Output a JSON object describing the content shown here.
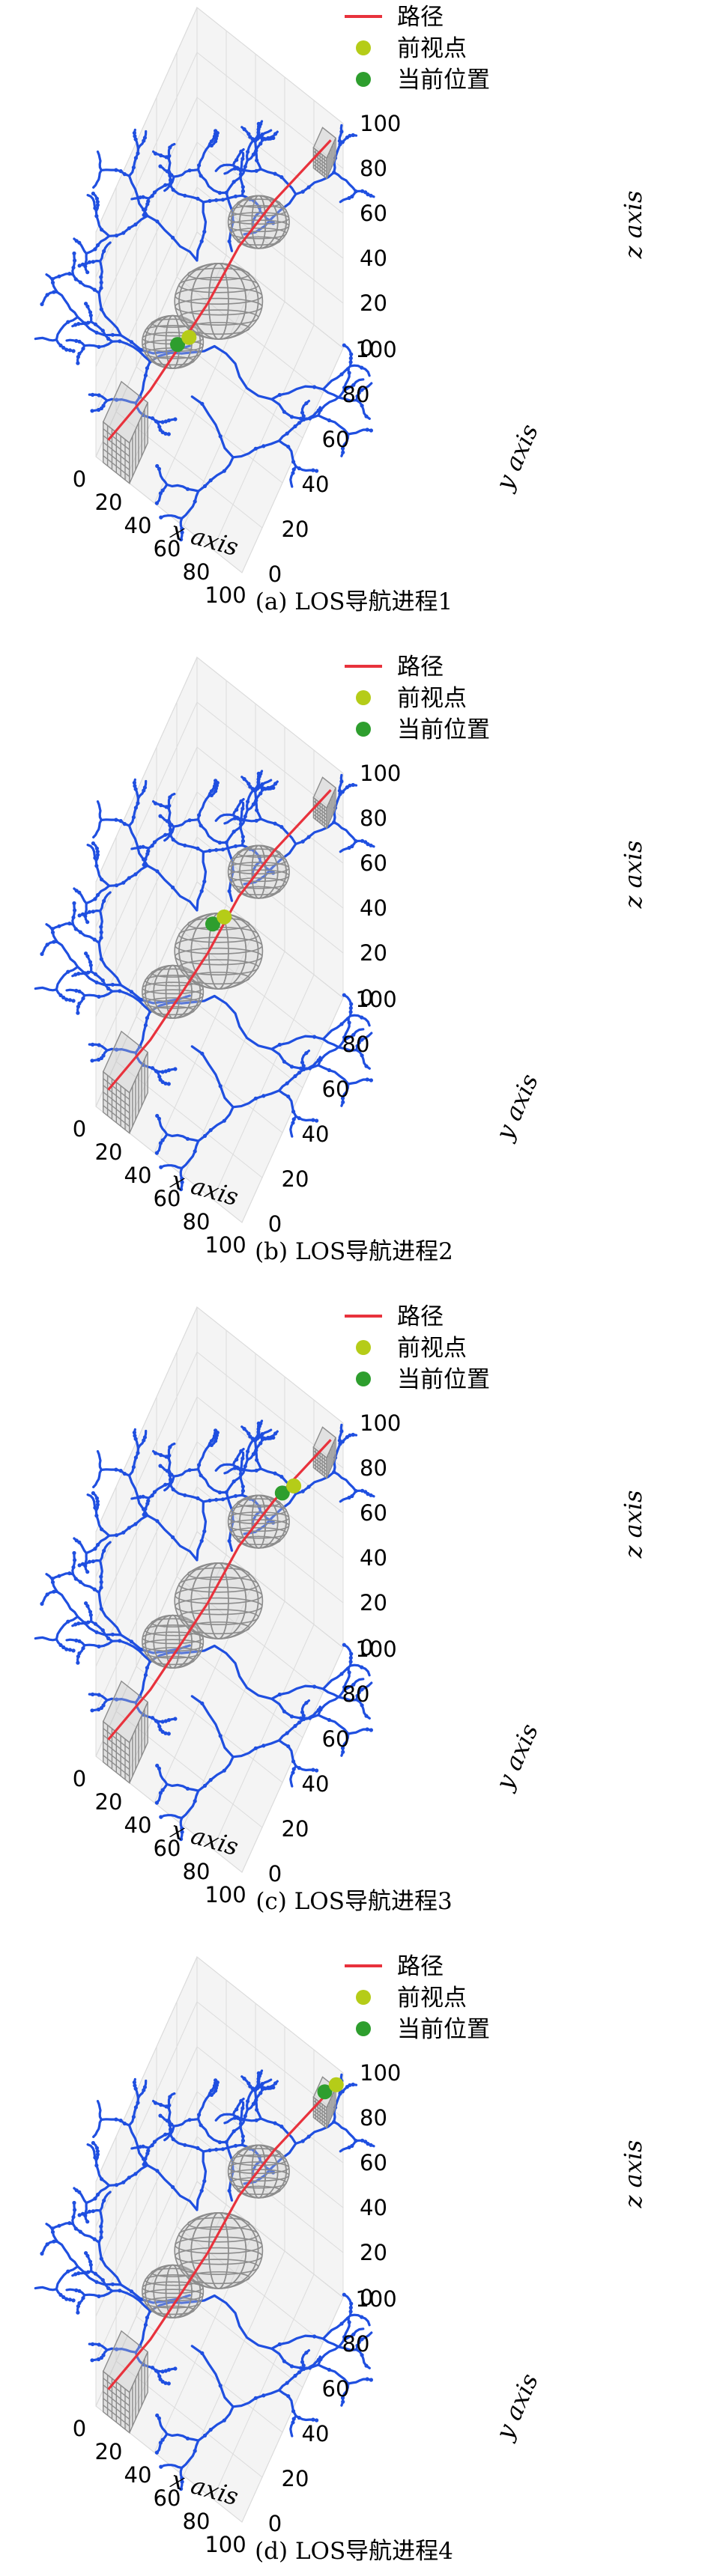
{
  "legend": {
    "path": "路径",
    "lookahead": "前视点",
    "current": "当前位置"
  },
  "colors": {
    "path": "#e8323c",
    "lookahead": "#b5cc18",
    "current": "#2e9e2e",
    "tree": "#1f4fe0",
    "obstacle": "#8c8c8c"
  },
  "axes": {
    "xlabel": "x axis",
    "ylabel": "y axis",
    "zlabel": "z axis",
    "xticks": [
      "0",
      "20",
      "40",
      "60",
      "80",
      "100"
    ],
    "yticks": [
      "0",
      "20",
      "40",
      "60",
      "80",
      "100"
    ],
    "zticks": [
      "0",
      "20",
      "40",
      "60",
      "80",
      "100"
    ]
  },
  "chart_data": [
    {
      "type": "line",
      "caption": "(a) LOS导航进程1",
      "xlim": [
        0,
        100
      ],
      "ylim": [
        0,
        100
      ],
      "zlim": [
        0,
        100
      ],
      "path": [
        [
          5,
          5,
          5
        ],
        [
          20,
          25,
          15
        ],
        [
          32,
          40,
          28
        ],
        [
          42,
          50,
          40
        ],
        [
          55,
          62,
          60
        ],
        [
          70,
          75,
          75
        ],
        [
          95,
          95,
          95
        ]
      ],
      "lookahead_point": [
        34,
        40,
        30
      ],
      "current_position": [
        33,
        39,
        29
      ]
    },
    {
      "type": "line",
      "caption": "(b) LOS导航进程2",
      "xlim": [
        0,
        100
      ],
      "ylim": [
        0,
        100
      ],
      "zlim": [
        0,
        100
      ],
      "path": [
        [
          5,
          5,
          5
        ],
        [
          20,
          25,
          15
        ],
        [
          32,
          40,
          28
        ],
        [
          42,
          50,
          40
        ],
        [
          55,
          62,
          60
        ],
        [
          70,
          75,
          75
        ],
        [
          95,
          95,
          95
        ]
      ],
      "lookahead_point": [
        47,
        56,
        52
      ],
      "current_position": [
        46,
        55,
        51
      ]
    },
    {
      "type": "line",
      "caption": "(c) LOS导航进程3",
      "xlim": [
        0,
        100
      ],
      "ylim": [
        0,
        100
      ],
      "zlim": [
        0,
        100
      ],
      "path": [
        [
          5,
          5,
          5
        ],
        [
          20,
          25,
          15
        ],
        [
          32,
          40,
          28
        ],
        [
          42,
          50,
          40
        ],
        [
          55,
          62,
          60
        ],
        [
          70,
          75,
          75
        ],
        [
          95,
          95,
          95
        ]
      ],
      "lookahead_point": [
        78,
        80,
        80
      ],
      "current_position": [
        77,
        79,
        79
      ]
    },
    {
      "type": "line",
      "caption": "(d) LOS导航进程4",
      "xlim": [
        0,
        100
      ],
      "ylim": [
        0,
        100
      ],
      "zlim": [
        0,
        100
      ],
      "path": [
        [
          5,
          5,
          5
        ],
        [
          20,
          25,
          15
        ],
        [
          32,
          40,
          28
        ],
        [
          42,
          50,
          40
        ],
        [
          55,
          62,
          60
        ],
        [
          70,
          75,
          75
        ],
        [
          95,
          95,
          95
        ]
      ],
      "lookahead_point": [
        96,
        96,
        96
      ],
      "current_position": [
        95,
        95,
        95
      ]
    }
  ]
}
